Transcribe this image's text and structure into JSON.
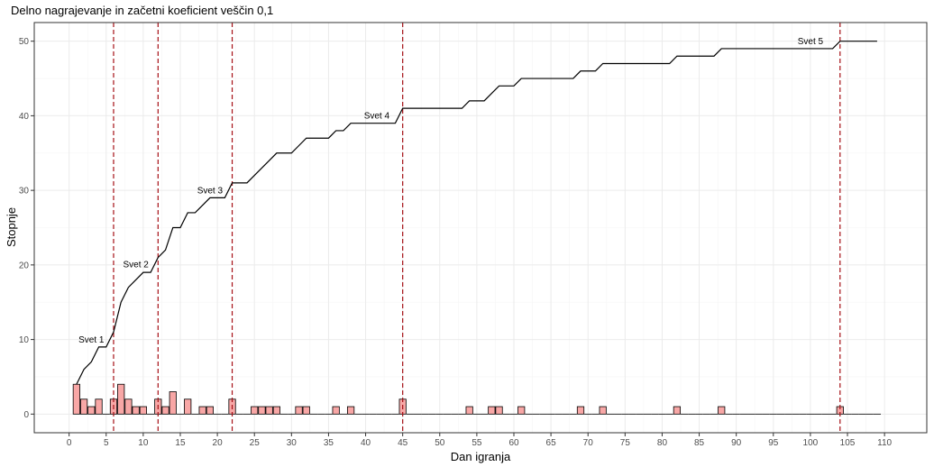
{
  "chart_data": {
    "type": "line",
    "title": "Delno nagrajevanje in začetni koeficient veščin 0,1",
    "xlabel": "Dan igranja",
    "ylabel": "Stopnje",
    "xlim": [
      -4.7,
      115.7
    ],
    "ylim": [
      -2.5,
      52.5
    ],
    "x_ticks": [
      0,
      5,
      10,
      15,
      20,
      25,
      30,
      35,
      40,
      45,
      50,
      55,
      60,
      65,
      70,
      75,
      80,
      85,
      90,
      95,
      100,
      105,
      110
    ],
    "y_ticks": [
      0,
      10,
      20,
      30,
      40,
      50
    ],
    "grid": true,
    "legend": "none",
    "colors": {
      "line": "#000000",
      "bar_fill": "#f8a7a6",
      "bar_stroke": "#000000",
      "vline": "#a50f15",
      "grid_major": "#ebebeb",
      "grid_minor": "#f5f5f5",
      "panel_border": "#333333"
    },
    "series": [
      {
        "kind": "step-line",
        "points": [
          [
            1,
            4
          ],
          [
            2,
            6
          ],
          [
            3,
            7
          ],
          [
            4,
            9
          ],
          [
            5,
            9
          ],
          [
            6,
            11
          ],
          [
            7,
            15
          ],
          [
            8,
            17
          ],
          [
            9,
            18
          ],
          [
            10,
            19
          ],
          [
            11,
            19
          ],
          [
            12,
            21
          ],
          [
            13,
            22
          ],
          [
            14,
            25
          ],
          [
            15,
            25
          ],
          [
            16,
            27
          ],
          [
            17,
            27
          ],
          [
            18,
            28
          ],
          [
            19,
            29
          ],
          [
            20,
            29
          ],
          [
            21,
            29
          ],
          [
            22,
            31
          ],
          [
            23,
            31
          ],
          [
            24,
            31
          ],
          [
            25,
            32
          ],
          [
            26,
            33
          ],
          [
            27,
            34
          ],
          [
            28,
            35
          ],
          [
            29,
            35
          ],
          [
            30,
            35
          ],
          [
            31,
            36
          ],
          [
            32,
            37
          ],
          [
            33,
            37
          ],
          [
            34,
            37
          ],
          [
            35,
            37
          ],
          [
            36,
            38
          ],
          [
            37,
            38
          ],
          [
            38,
            39
          ],
          [
            39,
            39
          ],
          [
            40,
            39
          ],
          [
            41,
            39
          ],
          [
            42,
            39
          ],
          [
            43,
            39
          ],
          [
            44,
            39
          ],
          [
            45,
            41
          ],
          [
            46,
            41
          ],
          [
            47,
            41
          ],
          [
            48,
            41
          ],
          [
            49,
            41
          ],
          [
            50,
            41
          ],
          [
            51,
            41
          ],
          [
            52,
            41
          ],
          [
            53,
            41
          ],
          [
            54,
            42
          ],
          [
            55,
            42
          ],
          [
            56,
            42
          ],
          [
            57,
            43
          ],
          [
            58,
            44
          ],
          [
            59,
            44
          ],
          [
            60,
            44
          ],
          [
            61,
            45
          ],
          [
            62,
            45
          ],
          [
            63,
            45
          ],
          [
            64,
            45
          ],
          [
            65,
            45
          ],
          [
            66,
            45
          ],
          [
            67,
            45
          ],
          [
            68,
            45
          ],
          [
            69,
            46
          ],
          [
            70,
            46
          ],
          [
            71,
            46
          ],
          [
            72,
            47
          ],
          [
            73,
            47
          ],
          [
            74,
            47
          ],
          [
            75,
            47
          ],
          [
            76,
            47
          ],
          [
            77,
            47
          ],
          [
            78,
            47
          ],
          [
            79,
            47
          ],
          [
            80,
            47
          ],
          [
            81,
            47
          ],
          [
            82,
            48
          ],
          [
            83,
            48
          ],
          [
            84,
            48
          ],
          [
            85,
            48
          ],
          [
            86,
            48
          ],
          [
            87,
            48
          ],
          [
            88,
            49
          ],
          [
            89,
            49
          ],
          [
            90,
            49
          ],
          [
            91,
            49
          ],
          [
            92,
            49
          ],
          [
            93,
            49
          ],
          [
            94,
            49
          ],
          [
            95,
            49
          ],
          [
            96,
            49
          ],
          [
            97,
            49
          ],
          [
            98,
            49
          ],
          [
            99,
            49
          ],
          [
            100,
            49
          ],
          [
            101,
            49
          ],
          [
            102,
            49
          ],
          [
            103,
            49
          ],
          [
            104,
            50
          ],
          [
            105,
            50
          ],
          [
            106,
            50
          ],
          [
            107,
            50
          ],
          [
            108,
            50
          ],
          [
            109,
            50
          ]
        ]
      },
      {
        "kind": "bar",
        "x_range": [
          1,
          109
        ],
        "nonzero": [
          [
            1,
            4
          ],
          [
            2,
            2
          ],
          [
            3,
            1
          ],
          [
            4,
            2
          ],
          [
            6,
            2
          ],
          [
            7,
            4
          ],
          [
            8,
            2
          ],
          [
            9,
            1
          ],
          [
            10,
            1
          ],
          [
            12,
            2
          ],
          [
            13,
            1
          ],
          [
            14,
            3
          ],
          [
            16,
            2
          ],
          [
            18,
            1
          ],
          [
            19,
            1
          ],
          [
            22,
            2
          ],
          [
            25,
            1
          ],
          [
            26,
            1
          ],
          [
            27,
            1
          ],
          [
            28,
            1
          ],
          [
            31,
            1
          ],
          [
            32,
            1
          ],
          [
            36,
            1
          ],
          [
            38,
            1
          ],
          [
            45,
            2
          ],
          [
            54,
            1
          ],
          [
            57,
            1
          ],
          [
            58,
            1
          ],
          [
            61,
            1
          ],
          [
            69,
            1
          ],
          [
            72,
            1
          ],
          [
            82,
            1
          ],
          [
            88,
            1
          ],
          [
            104,
            1
          ]
        ]
      }
    ],
    "vlines": [
      6,
      12,
      22,
      45,
      104
    ],
    "annotations": [
      {
        "text": "Svet 1",
        "x": 3,
        "y": 9.6
      },
      {
        "text": "Svet 2",
        "x": 9,
        "y": 19.7
      },
      {
        "text": "Svet 3",
        "x": 19,
        "y": 29.6
      },
      {
        "text": "Svet 4",
        "x": 41.5,
        "y": 39.6
      },
      {
        "text": "Svet 5",
        "x": 100,
        "y": 49.6
      }
    ]
  }
}
